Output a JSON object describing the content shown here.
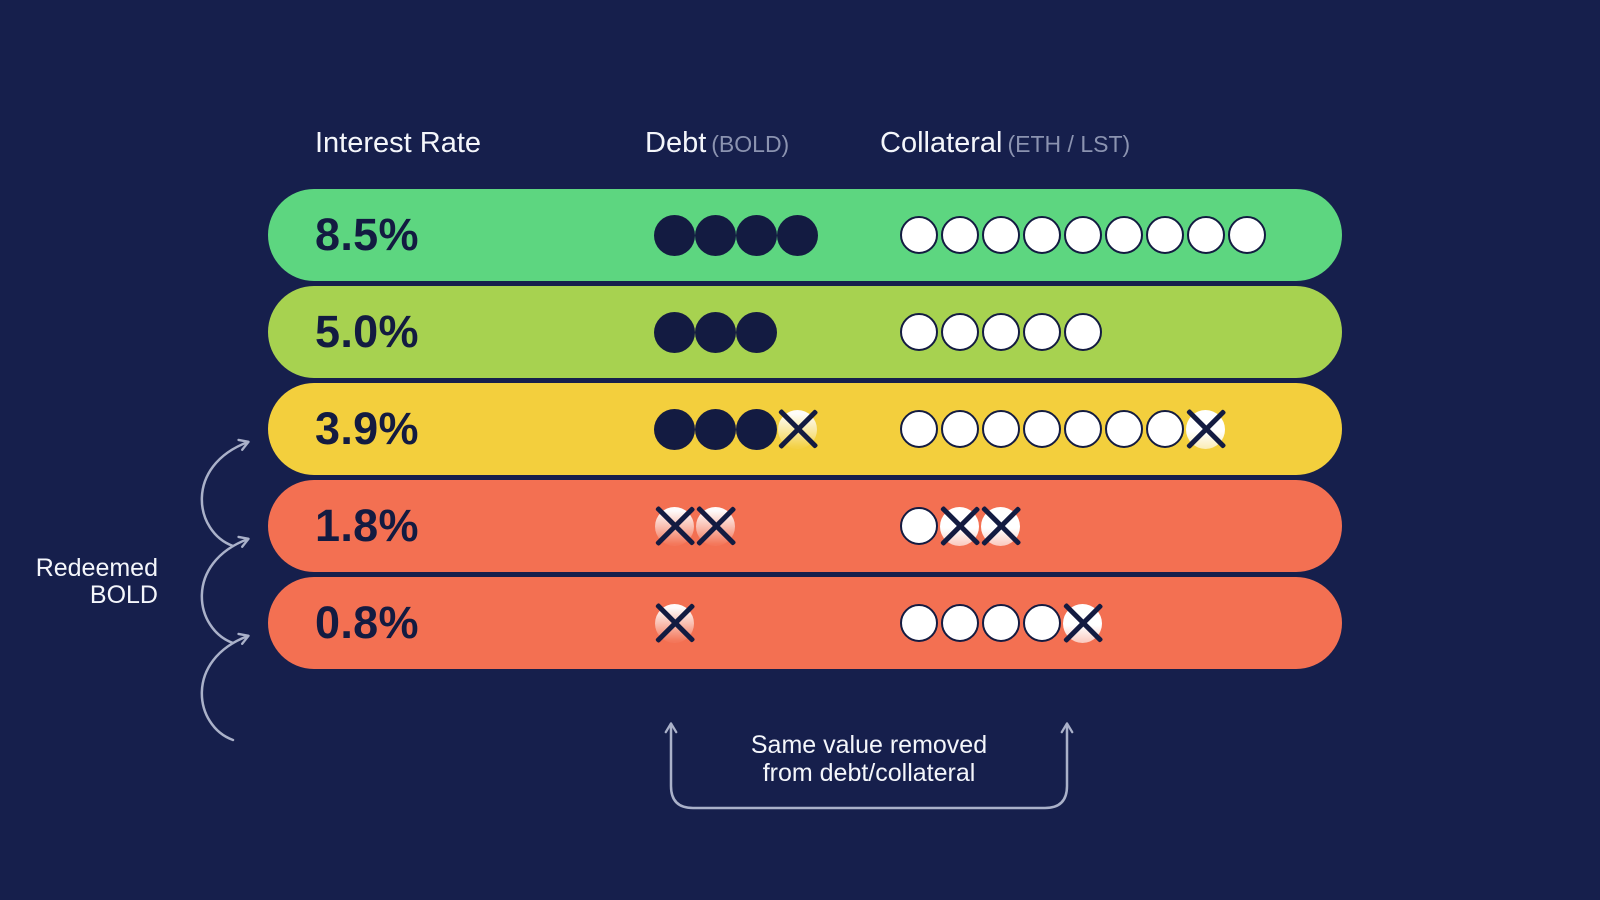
{
  "title": "Interest rate tranches redemption diagram",
  "colors": {
    "background": "#161f4c",
    "ink": "#131b41",
    "arrow": "#aab1c9",
    "text_light": "#f4f6fb",
    "text_muted": "#8b93b0",
    "row_green": "#5dd680",
    "row_lightgreen": "#a7d250",
    "row_yellow": "#f3cf3d",
    "row_orange": "#f37052"
  },
  "header": {
    "interest_rate": "Interest Rate",
    "debt": "Debt",
    "debt_unit": "(BOLD)",
    "collateral": "Collateral",
    "collateral_unit": "(ETH / LST)"
  },
  "rows": [
    {
      "rate": "8.5%",
      "color": "#5dd680",
      "debt": {
        "filled": 4,
        "crossed": 0
      },
      "collateral": {
        "open": 9,
        "crossed": 0
      }
    },
    {
      "rate": "5.0%",
      "color": "#a7d250",
      "debt": {
        "filled": 3,
        "crossed": 0
      },
      "collateral": {
        "open": 5,
        "crossed": 0
      }
    },
    {
      "rate": "3.9%",
      "color": "#f3cf3d",
      "debt": {
        "filled": 3,
        "crossed": 1
      },
      "collateral": {
        "open": 7,
        "crossed": 1
      }
    },
    {
      "rate": "1.8%",
      "color": "#f37052",
      "debt": {
        "filled": 0,
        "crossed": 2
      },
      "collateral": {
        "open": 1,
        "crossed": 2
      }
    },
    {
      "rate": "0.8%",
      "color": "#f37052",
      "debt": {
        "filled": 0,
        "crossed": 1
      },
      "collateral": {
        "open": 4,
        "crossed": 1
      }
    }
  ],
  "icons": {
    "debt_unit_dot": "filled-circle",
    "collateral_unit_dot": "open-circle",
    "redeemed_unit": "crossed-circle",
    "side_arrows": "curved-arrow-right",
    "bottom_bracket": "up-arrows-bracket"
  },
  "side_label": {
    "line1": "Redeemed",
    "line2": "BOLD"
  },
  "bottom_note": {
    "line1": "Same value removed",
    "line2": "from debt/collateral"
  }
}
